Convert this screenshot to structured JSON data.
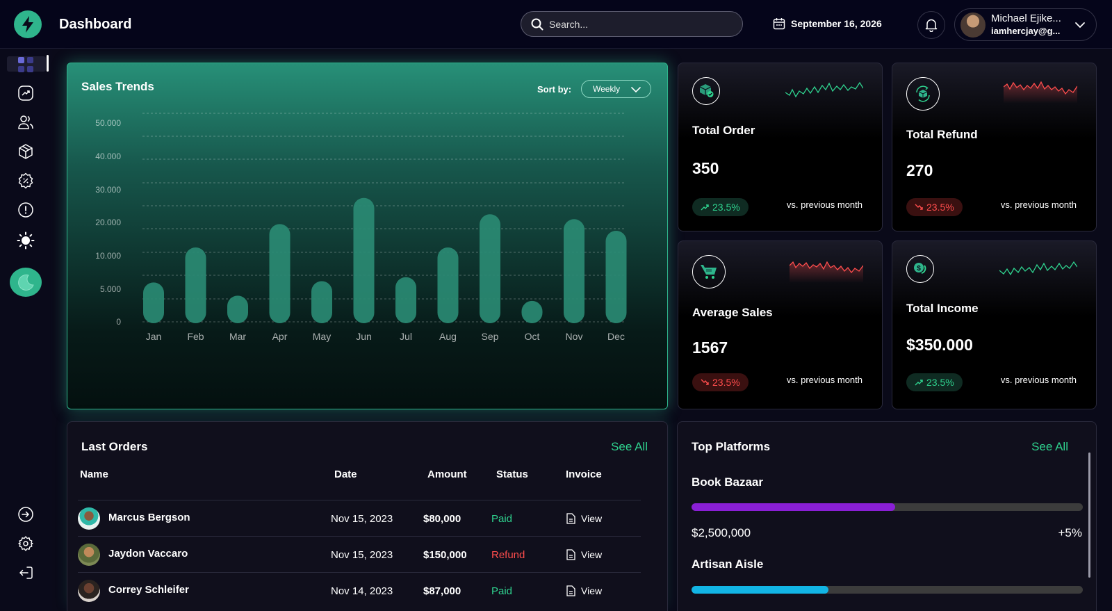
{
  "header": {
    "title": "Dashboard",
    "search_placeholder": "Search...",
    "date": "September 16, 2026",
    "user_name": "Michael Ejike...",
    "user_email": "iamhercjay@g..."
  },
  "sales_trends": {
    "title": "Sales Trends",
    "sort_label": "Sort by:",
    "sort_value": "Weekly"
  },
  "chart_data": {
    "type": "bar",
    "title": "Sales Trends",
    "categories": [
      "Jan",
      "Feb",
      "Mar",
      "Apr",
      "May",
      "Jun",
      "Jul",
      "Aug",
      "Sep",
      "Oct",
      "Nov",
      "Dec"
    ],
    "values": [
      6000,
      12500,
      4000,
      19500,
      6200,
      27500,
      6800,
      12500,
      22500,
      3200,
      21000,
      17500
    ],
    "y_ticks": [
      0,
      5000,
      10000,
      20000,
      30000,
      40000,
      50000
    ],
    "y_tick_labels": [
      "0",
      "5.000",
      "10.000",
      "20.000",
      "30.000",
      "40.000",
      "50.000"
    ],
    "xlabel": "",
    "ylabel": "",
    "grid": true,
    "bar_color": "#2a8a73"
  },
  "stats": [
    {
      "title": "Total Order",
      "value": "350",
      "change": "23.5%",
      "trend": "up",
      "comparison": "vs. previous month",
      "icon": "package-check-icon"
    },
    {
      "title": "Total Refund",
      "value": "270",
      "change": "23.5%",
      "trend": "down",
      "comparison": "vs. previous month",
      "icon": "refund-box-icon"
    },
    {
      "title": "Average Sales",
      "value": "1567",
      "change": "23.5%",
      "trend": "down",
      "comparison": "vs. previous month",
      "icon": "cart-icon"
    },
    {
      "title": "Total Income",
      "value": "$350.000",
      "change": "23.5%",
      "trend": "up",
      "comparison": "vs. previous month",
      "icon": "coins-icon"
    }
  ],
  "orders": {
    "title": "Last Orders",
    "see_all": "See All",
    "columns": [
      "Name",
      "Date",
      "Amount",
      "Status",
      "Invoice"
    ],
    "rows": [
      {
        "name": "Marcus Bergson",
        "date": "Nov 15, 2023",
        "amount": "$80,000",
        "status": "Paid",
        "invoice": "View"
      },
      {
        "name": "Jaydon Vaccaro",
        "date": "Nov 15, 2023",
        "amount": "$150,000",
        "status": "Refund",
        "invoice": "View"
      },
      {
        "name": "Correy Schleifer",
        "date": "Nov 14, 2023",
        "amount": "$87,000",
        "status": "Paid",
        "invoice": "View"
      }
    ]
  },
  "platforms": {
    "title": "Top Platforms",
    "see_all": "See All",
    "items": [
      {
        "name": "Book Bazaar",
        "amount": "$2,500,000",
        "change": "+5%",
        "fill": 0.52,
        "color": "#8a1fd6"
      },
      {
        "name": "Artisan Aisle",
        "amount": "",
        "change": "",
        "fill": 0.35,
        "color": "#12b5e5"
      }
    ]
  },
  "colors": {
    "accent": "#2fb58c",
    "positive": "#2fd38f",
    "negative": "#ff4d4d"
  }
}
